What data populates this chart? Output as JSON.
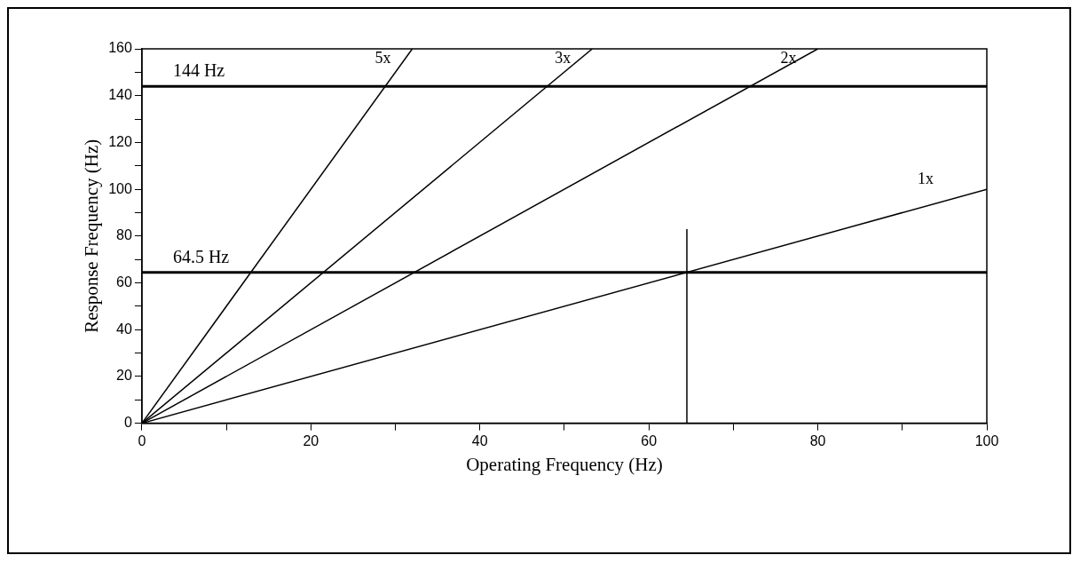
{
  "chart_data": {
    "type": "line",
    "xlabel": "Operating Frequency (Hz)",
    "ylabel": "Response Frequency (Hz)",
    "xlim": [
      0,
      100
    ],
    "ylim": [
      0,
      160
    ],
    "xticks": [
      0,
      {
        "value": 10,
        "label": null
      },
      20,
      {
        "value": 30,
        "label": null
      },
      40,
      {
        "value": 50,
        "label": null
      },
      60,
      {
        "value": 70,
        "label": null
      },
      80,
      {
        "value": 90,
        "label": null
      },
      100
    ],
    "yticks": [
      0,
      {
        "value": 10,
        "label": null
      },
      20,
      {
        "value": 30,
        "label": null
      },
      40,
      {
        "value": 50,
        "label": null
      },
      60,
      {
        "value": 70,
        "label": null
      },
      80,
      {
        "value": 90,
        "label": null
      },
      100,
      {
        "value": 110,
        "label": null
      },
      120,
      {
        "value": 130,
        "label": null
      },
      140,
      {
        "value": 150,
        "label": null
      },
      160
    ],
    "grid": false,
    "legend": false,
    "marker": "none",
    "line_style": "solid",
    "series": [
      {
        "name": "5x",
        "color": "#000000",
        "x": [
          0,
          32
        ],
        "values": [
          0,
          160
        ]
      },
      {
        "name": "3x",
        "color": "#000000",
        "x": [
          0,
          53.3
        ],
        "values": [
          0,
          160
        ]
      },
      {
        "name": "2x",
        "color": "#000000",
        "x": [
          0,
          80
        ],
        "values": [
          0,
          160
        ]
      },
      {
        "name": "1x",
        "color": "#000000",
        "x": [
          0,
          100
        ],
        "values": [
          0,
          100
        ]
      },
      {
        "color": "#000000",
        "x": [
          64.5,
          64.5
        ],
        "values": [
          0,
          83
        ]
      }
    ],
    "ref_lines": [
      {
        "axis": "y",
        "value": 144,
        "label": "144 Hz",
        "color": "#000000"
      },
      {
        "axis": "y",
        "value": 64.5,
        "label": "64.5 Hz",
        "color": "#000000"
      }
    ]
  }
}
